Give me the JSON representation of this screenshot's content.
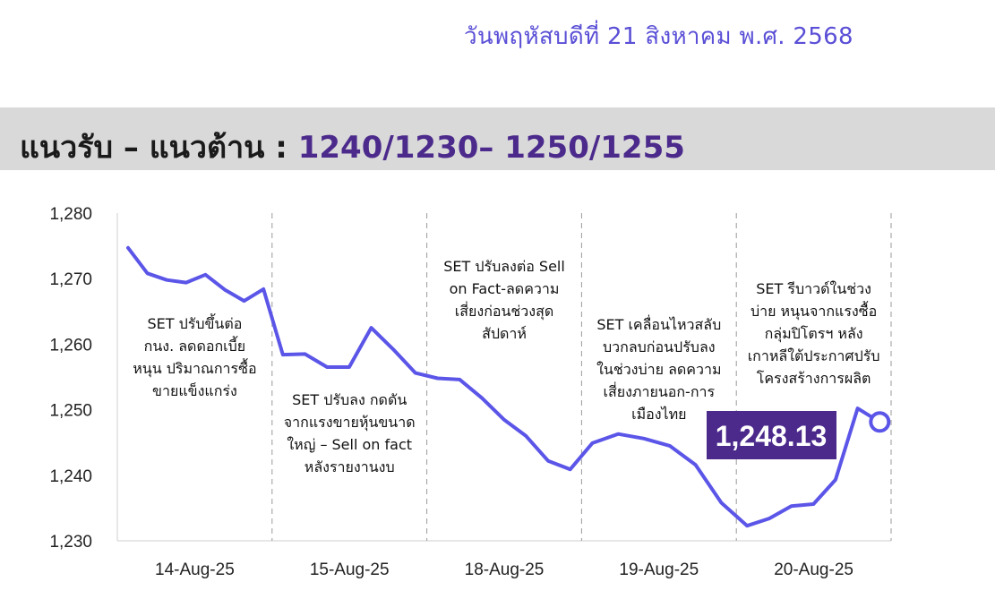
{
  "header": {
    "date_text": "วันพฤหัสบดีที่ 21 สิงหาคม พ.ศ. 2568",
    "title_prefix": "แนวรับ – แนวต้าน :",
    "title_levels": "1240/1230– 1250/1255"
  },
  "colors": {
    "line": "#5b55e8",
    "title_levels": "#4b2a8c",
    "label_box": "#4b2a8c",
    "title_bar": "#d9d9d9"
  },
  "chart_data": {
    "type": "line",
    "ylim": [
      1230,
      1280
    ],
    "yticks": [
      1230,
      1240,
      1250,
      1260,
      1270,
      1280
    ],
    "ytick_labels": [
      "1,230",
      "1,240",
      "1,250",
      "1,260",
      "1,270",
      "1,280"
    ],
    "categories": [
      "14-Aug-25",
      "15-Aug-25",
      "18-Aug-25",
      "19-Aug-25",
      "20-Aug-25"
    ],
    "series": [
      {
        "values": [
          [
            1274.7,
            1270.8,
            1269.8,
            1269.4,
            1270.6,
            1268.3,
            1266.6,
            1268.4
          ],
          [
            1258.4,
            1258.5,
            1256.5,
            1256.5,
            1262.5,
            1259.2,
            1255.6
          ],
          [
            1254.8,
            1254.6,
            1251.8,
            1248.5,
            1246.0,
            1242.2,
            1240.9
          ],
          [
            1244.9,
            1246.3,
            1245.6,
            1244.5,
            1241.6,
            1235.8
          ],
          [
            1232.3,
            1233.4,
            1235.3,
            1235.6,
            1239.3,
            1250.2,
            1248.13
          ]
        ]
      }
    ],
    "last_value_label": "1,248.13",
    "annotations": [
      [
        "SET ปรับขึ้นต่อ",
        "กนง. ลดดอกเบี้ย",
        "หนุน ปริมาณการซื้อ",
        "ขายแข็งแกร่ง"
      ],
      [
        "SET ปรับลง กดดัน",
        "จากแรงขายหุ้นขนาด",
        "ใหญ่ – Sell on fact",
        "หลังรายงานงบ"
      ],
      [
        "SET ปรับลงต่อ Sell",
        "on Fact-ลดความ",
        "เสี่ยงก่อนช่วงสุด",
        "สัปดาห์"
      ],
      [
        "SET เคลื่อนไหวสลับ",
        "บวกลบก่อนปรับลง",
        "ในช่วงบ่าย ลดความ",
        "เสี่ยงภายนอก-การ",
        "เมืองไทย"
      ],
      [
        "SET รีบาวด์ในช่วง",
        "บ่าย หนุนจากแรงซื้อ",
        "กลุ่มปิโตรฯ หลัง",
        "เกาหลีใต้ประกาศปรับ",
        "โครงสร้างการผลิต"
      ]
    ]
  }
}
